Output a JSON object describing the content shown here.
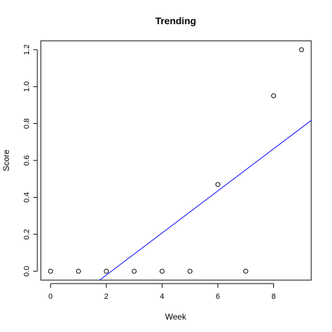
{
  "chart_data": {
    "type": "scatter",
    "title": "Trending",
    "xlabel": "Week",
    "ylabel": "Score",
    "xlim": [
      -0.35,
      9.35
    ],
    "ylim": [
      -0.048,
      1.248
    ],
    "xticks": [
      0,
      2,
      4,
      6,
      8
    ],
    "yticks": [
      0.0,
      0.2,
      0.4,
      0.6,
      0.8,
      1.0,
      1.2
    ],
    "xtick_labels": [
      "0",
      "2",
      "4",
      "6",
      "8"
    ],
    "ytick_labels": [
      "0.0",
      "0.2",
      "0.4",
      "0.6",
      "0.8",
      "1.0",
      "1.2"
    ],
    "grid": false,
    "series": [
      {
        "x": [
          0,
          1,
          2,
          3,
          4,
          5,
          6,
          7,
          8,
          9
        ],
        "y": [
          0,
          0,
          0,
          0,
          0,
          0,
          0.47,
          0,
          0.95,
          1.2
        ],
        "marker": "open-circle",
        "color": "#000000"
      }
    ],
    "trend_line": {
      "points": [
        [
          1.76,
          -0.048
        ],
        [
          9.35,
          0.817
        ]
      ],
      "color": "#0000ff"
    }
  }
}
